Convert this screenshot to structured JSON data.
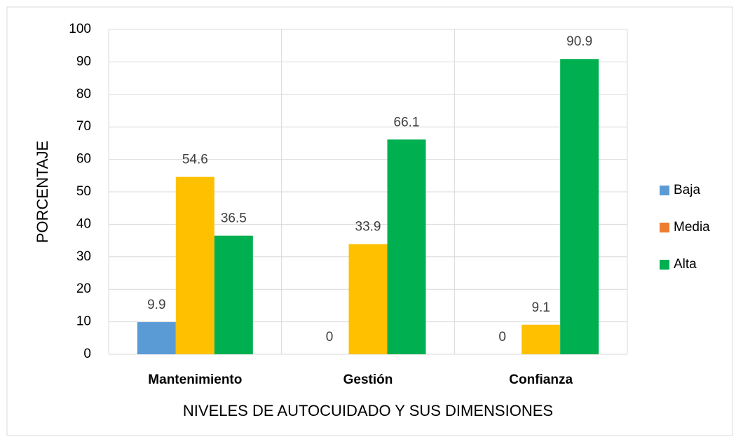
{
  "chart_data": {
    "type": "bar",
    "categories": [
      "Mantenimiento",
      "Gestión",
      "Confianza"
    ],
    "series": [
      {
        "name": "Baja",
        "color": "#5B9BD5",
        "values": [
          9.9,
          0,
          0
        ]
      },
      {
        "name": "Media",
        "color": "#FFC000",
        "legend_color": "#ED7D31",
        "values": [
          54.6,
          33.9,
          9.1
        ]
      },
      {
        "name": "Alta",
        "color": "#00B050",
        "values": [
          36.5,
          66.1,
          90.9
        ]
      }
    ],
    "ylabel": "PORCENTAJE",
    "xlabel": "NIVELES DE AUTOCUIDADO Y SUS DIMENSIONES",
    "ylim": [
      0,
      100
    ],
    "yticks": [
      0,
      10,
      20,
      30,
      40,
      50,
      60,
      70,
      80,
      90,
      100
    ],
    "grid": true,
    "legend": "right"
  }
}
